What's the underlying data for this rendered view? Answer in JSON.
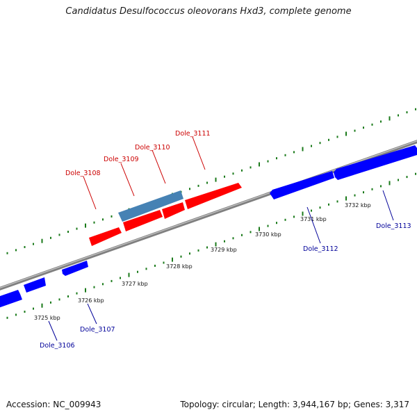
{
  "title": "Candidatus Desulfococcus oleovorans Hxd3, complete genome",
  "footer": {
    "accession": "Accession: NC_009943",
    "info": "Topology: circular; Length: 3,944,167 bp; Genes: 3,317"
  },
  "colors": {
    "forward_gene": "#ff0000",
    "reverse_gene": "#0000ff",
    "highlight_gene": "#4682b4",
    "forward_label": "#cc0000",
    "reverse_label": "#000099",
    "tick": "#1a7a1a",
    "backbone": "#808080"
  },
  "ticks": [
    {
      "label": "3725 kbp"
    },
    {
      "label": "3726 kbp"
    },
    {
      "label": "3727 kbp"
    },
    {
      "label": "3728 kbp"
    },
    {
      "label": "3729 kbp"
    },
    {
      "label": "3730 kbp"
    },
    {
      "label": "3731 kbp"
    },
    {
      "label": "3732 kbp"
    }
  ],
  "genes": [
    {
      "name": "Dole_3106",
      "strand": "reverse"
    },
    {
      "name": "Dole_3107",
      "strand": "reverse"
    },
    {
      "name": "Dole_3108",
      "strand": "forward"
    },
    {
      "name": "Dole_3109",
      "strand": "forward",
      "highlight": true
    },
    {
      "name": "Dole_3110",
      "strand": "forward"
    },
    {
      "name": "Dole_3111",
      "strand": "forward"
    },
    {
      "name": "Dole_3112",
      "strand": "reverse"
    },
    {
      "name": "Dole_3113",
      "strand": "reverse"
    }
  ]
}
